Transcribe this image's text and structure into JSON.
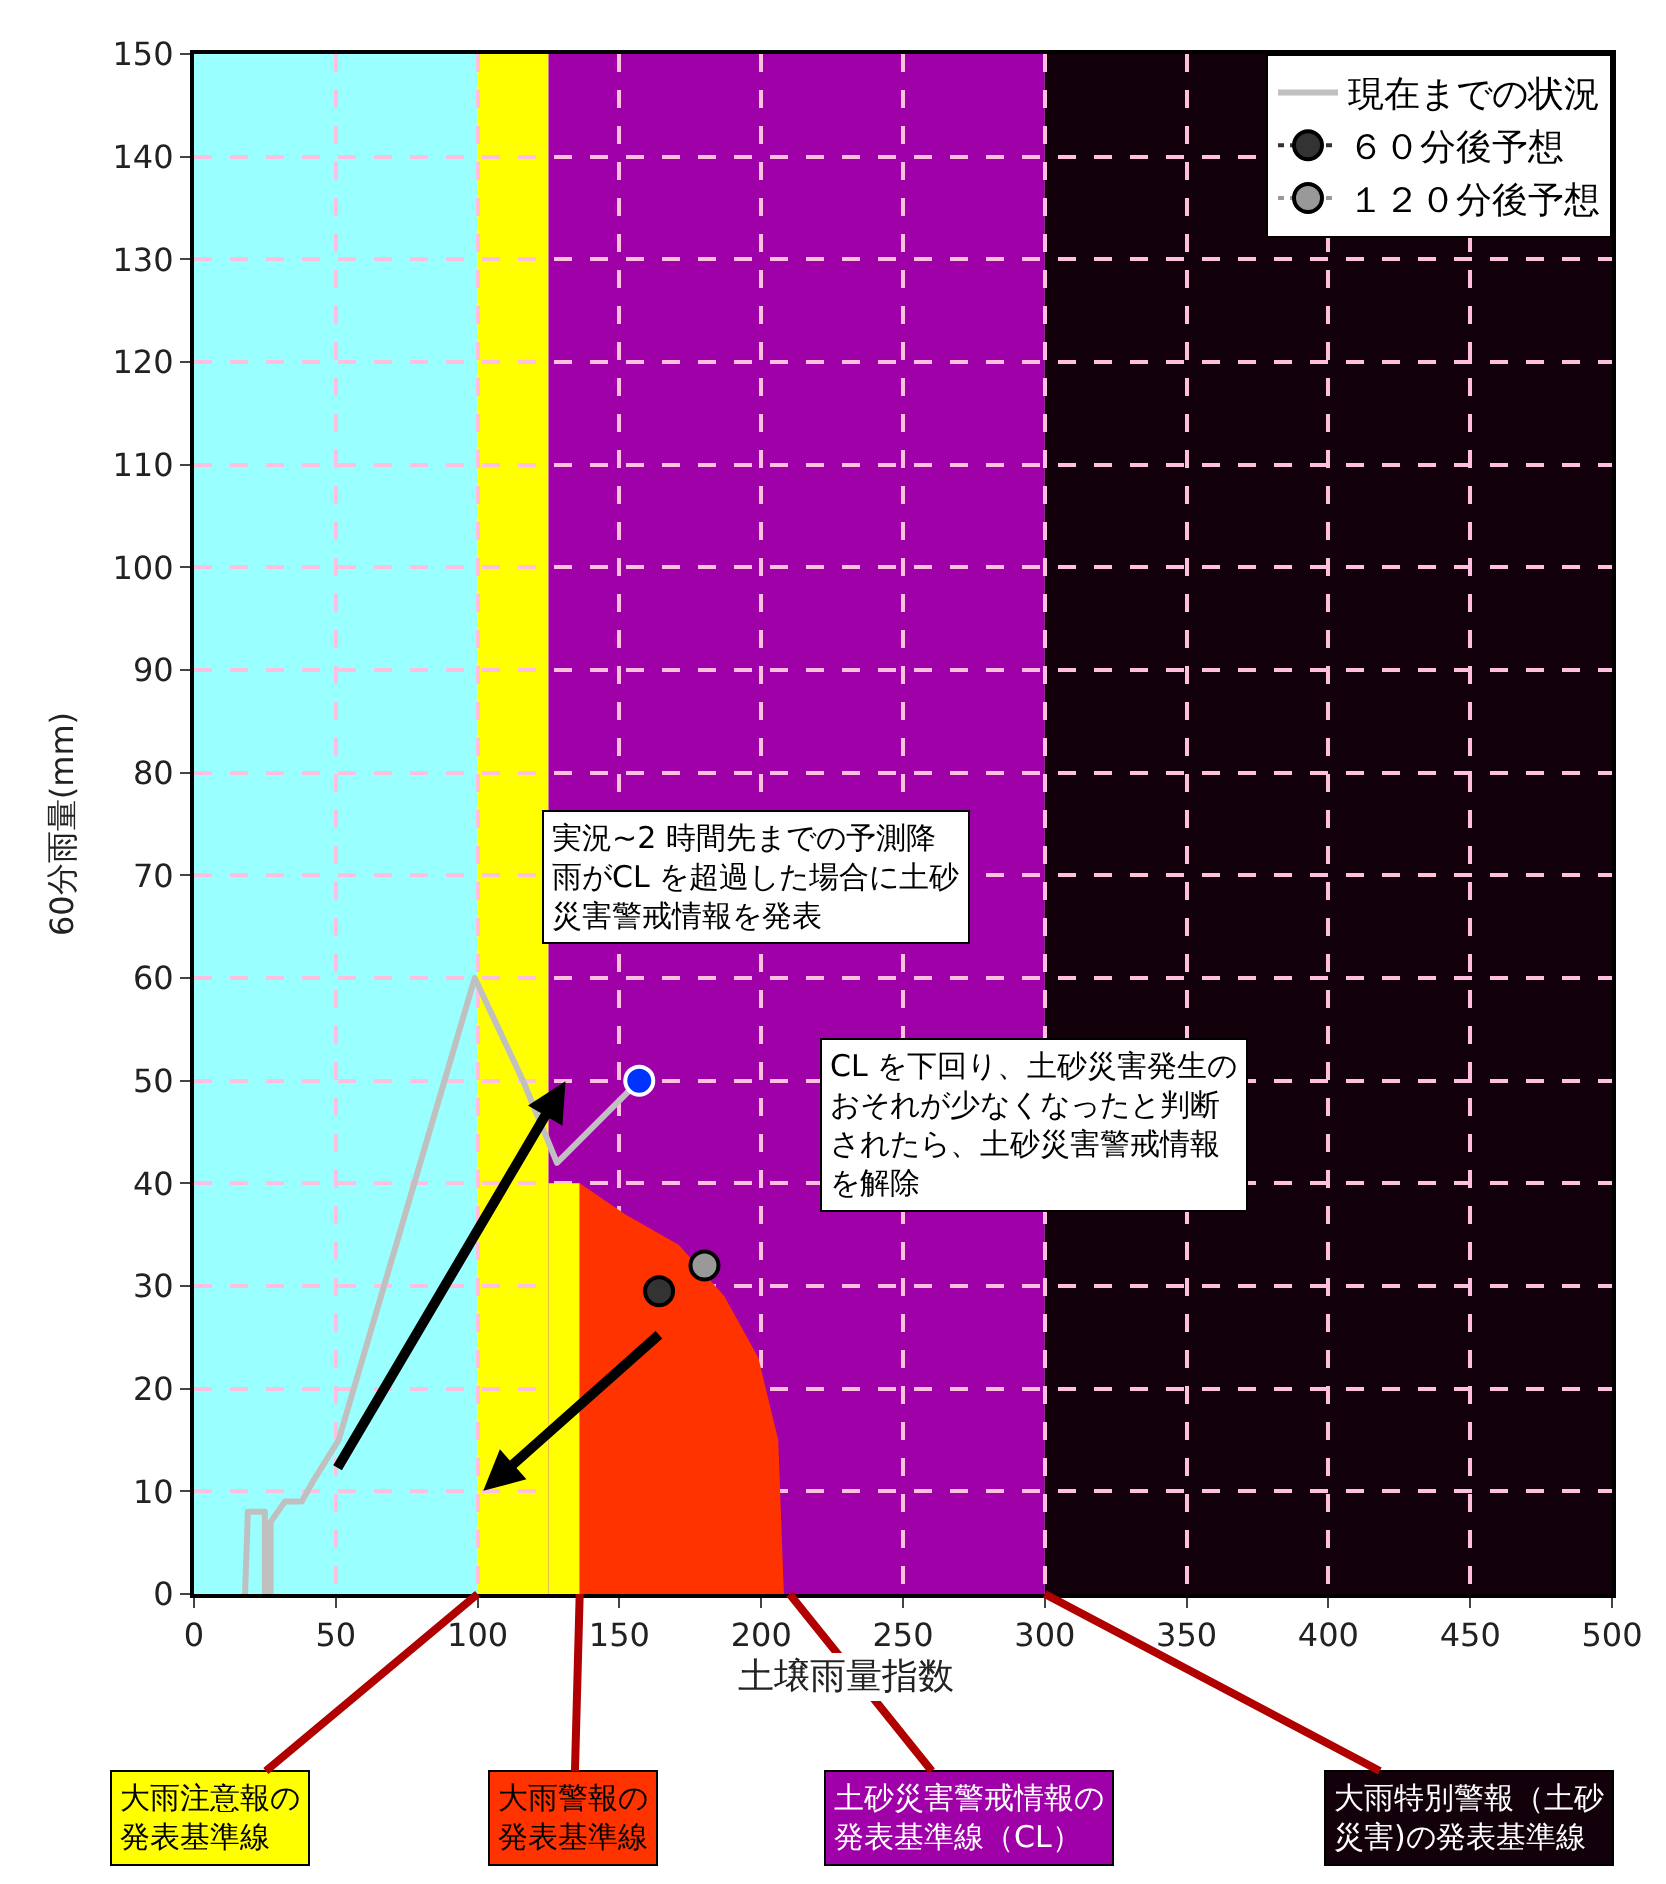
{
  "chart_data": {
    "type": "line",
    "xlabel": "土壌雨量指数",
    "ylabel": "60分雨量(mm)",
    "xlim": [
      0,
      500
    ],
    "xticks": [
      0,
      50,
      100,
      150,
      200,
      250,
      300,
      350,
      400,
      450,
      500
    ],
    "ylim": [
      0,
      150
    ],
    "yticks": [
      0,
      10,
      20,
      30,
      40,
      50,
      60,
      70,
      80,
      90,
      100,
      110,
      120,
      130,
      140,
      150
    ],
    "grid": true,
    "legend": "top right",
    "bands": [
      {
        "axis": "x",
        "from": 0,
        "to": 100,
        "color": "#99ffff"
      },
      {
        "axis": "x",
        "from": 100,
        "to": 125,
        "color": "#ffff00"
      },
      {
        "axis": "x",
        "from": 125,
        "to": 300,
        "color": "#a000a8"
      },
      {
        "axis": "x",
        "from": 300,
        "to": 500,
        "color": "#12000a"
      }
    ],
    "series": [
      {
        "type": "area",
        "color": "#ffff00",
        "x": [
          125,
          136
        ],
        "values": [
          40,
          40
        ]
      },
      {
        "type": "area",
        "color": "#ff3300",
        "x": [
          136,
          152,
          171,
          187,
          199,
          206,
          208
        ],
        "values": [
          40,
          37,
          34,
          29,
          23,
          15,
          0
        ]
      },
      {
        "name": "現在までの状況",
        "color": "#c0c0c0",
        "marker": "none",
        "line_style": "solid",
        "x": [
          18,
          19,
          25,
          25,
          27,
          27,
          32,
          38,
          42,
          51,
          99,
          116,
          128,
          157
        ],
        "values": [
          0,
          8,
          8,
          0,
          0,
          7,
          9,
          9,
          11,
          15,
          60,
          50,
          42,
          50
        ]
      },
      {
        "type": "scatter",
        "color": "#0033ff",
        "marker": "circle",
        "x": [
          157
        ],
        "values": [
          50
        ]
      },
      {
        "type": "scatter",
        "name": "６０分後予想",
        "color": "#333333",
        "marker": "circle",
        "line_style": "dotted",
        "x": [
          164
        ],
        "values": [
          29.5
        ]
      },
      {
        "type": "scatter",
        "name": "１２０分後予想",
        "color": "#999999",
        "marker": "circle",
        "line_style": "dotted",
        "x": [
          180
        ],
        "values": [
          32
        ]
      }
    ],
    "annotations": [
      "実況~2 時間先までの予測降雨がCL を超過した場合に土砂災害警戒情報を発表",
      "CL を下回り、土砂災害発生のおそれが少なくなったと判断されたら、土砂災害警戒情報を解除",
      {
        "text": "大雨注意報の発表基準線",
        "x": 100,
        "y": 0
      },
      {
        "text": "大雨警報の発表基準線",
        "x": 136,
        "y": 0
      },
      {
        "text": "土砂災害警戒情報の発表基準線（CL）",
        "x": 210,
        "y": 0
      },
      {
        "text": "大雨特別警報（土砂災害)の発表基準線",
        "x": 300,
        "y": 0
      }
    ]
  }
}
